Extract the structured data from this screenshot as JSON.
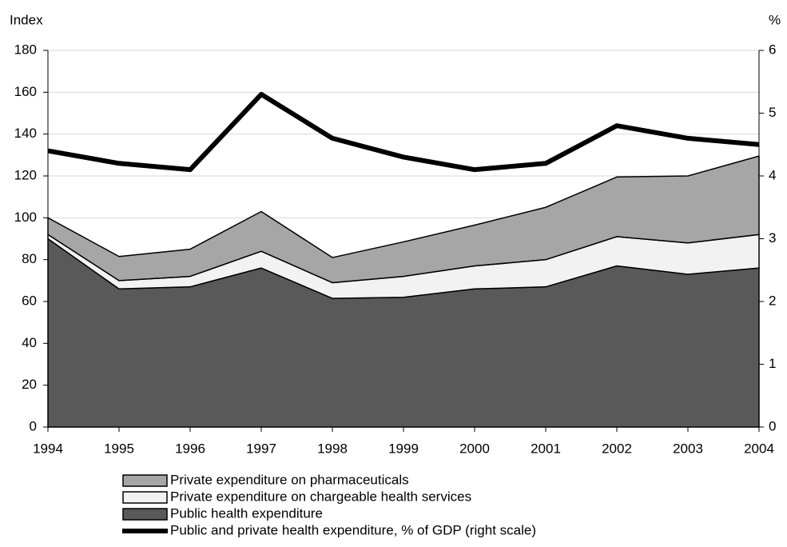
{
  "chart_data": {
    "type": "stacked-area-line",
    "y_label": "Index",
    "y2_label": "%",
    "x": [
      1994,
      1995,
      1996,
      1997,
      1998,
      1999,
      2000,
      2001,
      2002,
      2003,
      2004
    ],
    "xlim": [
      1994,
      2004
    ],
    "xticks": [
      1994,
      1995,
      1996,
      1997,
      1998,
      1999,
      2000,
      2001,
      2002,
      2003,
      2004
    ],
    "ylim": [
      0,
      180
    ],
    "yticks": [
      0,
      20,
      40,
      60,
      80,
      100,
      120,
      140,
      160,
      180
    ],
    "y2lim": [
      0,
      6
    ],
    "y2ticks": [
      0,
      1,
      2,
      3,
      4,
      5,
      6
    ],
    "grid": true,
    "series": [
      {
        "name": "Public health expenditure",
        "color": "#595959",
        "values": [
          90,
          66,
          67,
          76,
          61.5,
          62,
          66,
          67,
          77,
          73,
          76
        ]
      },
      {
        "name": "Private expenditure on chargeable health services",
        "color": "#f2f2f2",
        "values": [
          2,
          4,
          5,
          8,
          7.5,
          10,
          11,
          13,
          14,
          15,
          16
        ]
      },
      {
        "name": "Private expenditure on pharmaceuticals",
        "color": "#a6a6a6",
        "values": [
          8,
          11.5,
          13,
          19,
          12,
          16.5,
          19.5,
          25,
          28.5,
          32,
          37.5
        ]
      },
      {
        "name": "Public and private health expenditure, % of GDP (right scale)",
        "color": "#000000",
        "axis": "y2",
        "values": [
          4.4,
          4.2,
          4.1,
          5.3,
          4.6,
          4.3,
          4.1,
          4.2,
          4.8,
          4.6,
          4.5
        ]
      }
    ]
  }
}
